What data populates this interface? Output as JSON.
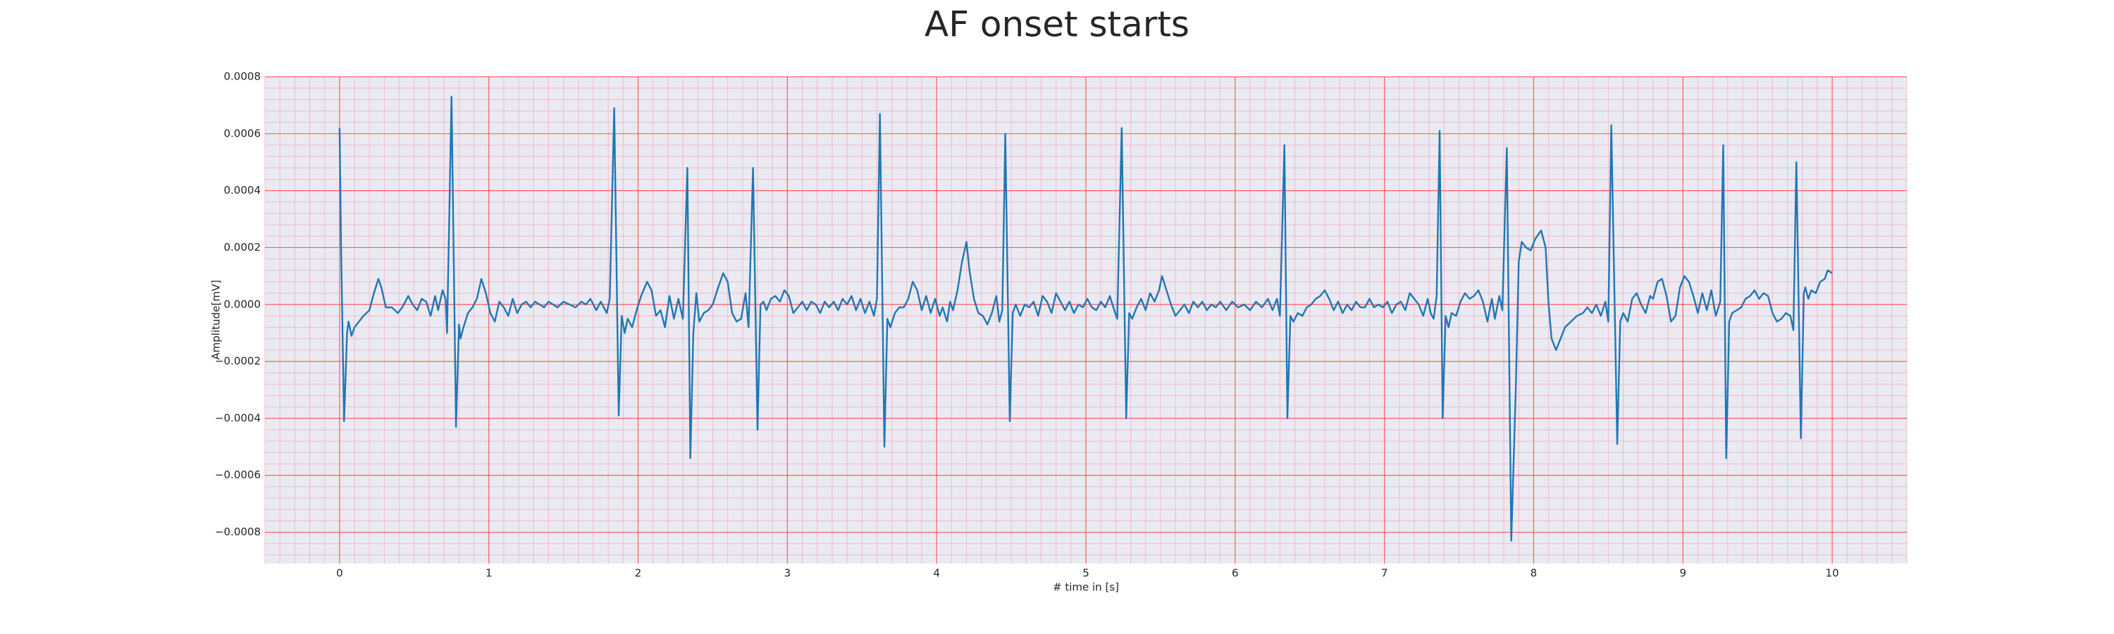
{
  "chart_data": {
    "type": "line",
    "title": "AF onset starts",
    "xlabel": "# time in [s]",
    "ylabel": "Amplitude[mV]",
    "color": "#1f77b4",
    "grid": true,
    "xlim": [
      -0.5,
      10.5
    ],
    "ylim": [
      -0.00091,
      0.0008
    ],
    "xticks": [
      0,
      1,
      2,
      3,
      4,
      5,
      6,
      7,
      8,
      9,
      10
    ],
    "yticks": [
      {
        "value": -0.0008,
        "label": "−0.0008"
      },
      {
        "value": -0.0006,
        "label": "−0.0006"
      },
      {
        "value": -0.0004,
        "label": "−0.0004"
      },
      {
        "value": -0.0002,
        "label": "−0.0002"
      },
      {
        "value": 0,
        "label": "0.0000"
      },
      {
        "value": 0.0002,
        "label": "0.0002"
      },
      {
        "value": 0.0004,
        "label": "0.0004"
      },
      {
        "value": 0.0006,
        "label": "0.0006"
      },
      {
        "value": 0.0008,
        "label": "0.0008"
      }
    ],
    "x": [
      0.0,
      0.01,
      0.03,
      0.05,
      0.06,
      0.08,
      0.1,
      0.13,
      0.16,
      0.2,
      0.23,
      0.26,
      0.28,
      0.31,
      0.35,
      0.39,
      0.42,
      0.46,
      0.49,
      0.52,
      0.55,
      0.58,
      0.61,
      0.64,
      0.66,
      0.69,
      0.71,
      0.72,
      0.75,
      0.78,
      0.8,
      0.81,
      0.83,
      0.86,
      0.89,
      0.92,
      0.95,
      0.98,
      1.01,
      1.04,
      1.07,
      1.1,
      1.13,
      1.16,
      1.19,
      1.22,
      1.25,
      1.28,
      1.31,
      1.34,
      1.37,
      1.4,
      1.43,
      1.46,
      1.5,
      1.54,
      1.58,
      1.62,
      1.65,
      1.68,
      1.72,
      1.75,
      1.79,
      1.81,
      1.84,
      1.87,
      1.89,
      1.91,
      1.93,
      1.96,
      1.99,
      2.02,
      2.06,
      2.09,
      2.12,
      2.15,
      2.18,
      2.21,
      2.24,
      2.27,
      2.3,
      2.33,
      2.35,
      2.37,
      2.39,
      2.41,
      2.44,
      2.47,
      2.5,
      2.53,
      2.57,
      2.6,
      2.63,
      2.66,
      2.69,
      2.72,
      2.74,
      2.77,
      2.8,
      2.82,
      2.84,
      2.86,
      2.89,
      2.92,
      2.95,
      2.98,
      3.01,
      3.04,
      3.07,
      3.1,
      3.13,
      3.16,
      3.19,
      3.22,
      3.25,
      3.28,
      3.31,
      3.34,
      3.37,
      3.4,
      3.43,
      3.46,
      3.49,
      3.52,
      3.55,
      3.58,
      3.6,
      3.62,
      3.65,
      3.67,
      3.69,
      3.72,
      3.75,
      3.78,
      3.81,
      3.84,
      3.87,
      3.9,
      3.93,
      3.96,
      3.99,
      4.02,
      4.04,
      4.07,
      4.09,
      4.11,
      4.14,
      4.17,
      4.2,
      4.22,
      4.25,
      4.28,
      4.31,
      4.34,
      4.37,
      4.4,
      4.42,
      4.44,
      4.46,
      4.49,
      4.51,
      4.53,
      4.56,
      4.59,
      4.62,
      4.65,
      4.68,
      4.71,
      4.74,
      4.77,
      4.8,
      4.83,
      4.86,
      4.89,
      4.92,
      4.95,
      4.98,
      5.01,
      5.04,
      5.07,
      5.1,
      5.13,
      5.16,
      5.19,
      5.21,
      5.24,
      5.27,
      5.29,
      5.31,
      5.34,
      5.37,
      5.4,
      5.43,
      5.46,
      5.49,
      5.51,
      5.54,
      5.57,
      5.6,
      5.63,
      5.66,
      5.69,
      5.72,
      5.75,
      5.78,
      5.81,
      5.84,
      5.87,
      5.9,
      5.94,
      5.98,
      6.02,
      6.06,
      6.1,
      6.14,
      6.18,
      6.22,
      6.25,
      6.28,
      6.3,
      6.33,
      6.35,
      6.37,
      6.39,
      6.42,
      6.45,
      6.48,
      6.51,
      6.54,
      6.57,
      6.6,
      6.63,
      6.66,
      6.69,
      6.72,
      6.75,
      6.78,
      6.81,
      6.84,
      6.87,
      6.9,
      6.93,
      6.96,
      6.99,
      7.02,
      7.05,
      7.08,
      7.11,
      7.14,
      7.17,
      7.2,
      7.23,
      7.26,
      7.29,
      7.31,
      7.33,
      7.35,
      7.37,
      7.39,
      7.41,
      7.43,
      7.45,
      7.48,
      7.51,
      7.54,
      7.57,
      7.6,
      7.63,
      7.66,
      7.69,
      7.72,
      7.74,
      7.77,
      7.79,
      7.82,
      7.85,
      7.88,
      7.9,
      7.92,
      7.95,
      7.98,
      8.01,
      8.05,
      8.08,
      8.1,
      8.12,
      8.15,
      8.18,
      8.21,
      8.25,
      8.29,
      8.33,
      8.36,
      8.39,
      8.42,
      8.45,
      8.48,
      8.5,
      8.52,
      8.56,
      8.58,
      8.6,
      8.63,
      8.66,
      8.69,
      8.72,
      8.75,
      8.78,
      8.8,
      8.83,
      8.86,
      8.89,
      8.92,
      8.95,
      8.98,
      9.01,
      9.04,
      9.07,
      9.1,
      9.13,
      9.16,
      9.19,
      9.22,
      9.25,
      9.27,
      9.29,
      9.31,
      9.33,
      9.36,
      9.39,
      9.42,
      9.45,
      9.48,
      9.51,
      9.54,
      9.57,
      9.6,
      9.63,
      9.66,
      9.69,
      9.72,
      9.74,
      9.76,
      9.79,
      9.81,
      9.82,
      9.84,
      9.86,
      9.89,
      9.92,
      9.95,
      9.97,
      10.0
    ],
    "values": [
      0.00062,
      0.0002,
      -0.00041,
      -0.0001,
      -6e-05,
      -0.00011,
      -8e-05,
      -6e-05,
      -4e-05,
      -2e-05,
      4e-05,
      9e-05,
      6e-05,
      -1e-05,
      -1e-05,
      -3e-05,
      -1e-05,
      3e-05,
      0,
      -2e-05,
      2e-05,
      1e-05,
      -4e-05,
      3e-05,
      -2e-05,
      5e-05,
      2e-05,
      -0.0001,
      0.00073,
      -0.00043,
      -7e-05,
      -0.00012,
      -8e-05,
      -3e-05,
      -1e-05,
      2e-05,
      9e-05,
      4e-05,
      -3e-05,
      -6e-05,
      1e-05,
      -1e-05,
      -4e-05,
      2e-05,
      -3e-05,
      0,
      1e-05,
      -1e-05,
      1e-05,
      0,
      -1e-05,
      1e-05,
      0,
      -1e-05,
      1e-05,
      0,
      -1e-05,
      1e-05,
      0,
      2e-05,
      -2e-05,
      1e-05,
      -3e-05,
      2e-05,
      0.00069,
      -0.00039,
      -4e-05,
      -0.0001,
      -5e-05,
      -8e-05,
      -2e-05,
      3e-05,
      8e-05,
      5e-05,
      -4e-05,
      -2e-05,
      -8e-05,
      3e-05,
      -5e-05,
      2e-05,
      -5e-05,
      0.00048,
      -0.00054,
      -0.0001,
      4e-05,
      -6e-05,
      -3e-05,
      -2e-05,
      0,
      5e-05,
      0.00011,
      8e-05,
      -3e-05,
      -6e-05,
      -5e-05,
      4e-05,
      -8e-05,
      0.00048,
      -0.00044,
      0,
      1e-05,
      -2e-05,
      2e-05,
      3e-05,
      1e-05,
      5e-05,
      3e-05,
      -3e-05,
      -1e-05,
      1e-05,
      -2e-05,
      1e-05,
      0,
      -3e-05,
      1e-05,
      -1e-05,
      1e-05,
      -2e-05,
      2e-05,
      0,
      3e-05,
      -2e-05,
      2e-05,
      -3e-05,
      1e-05,
      -4e-05,
      2e-05,
      0.00067,
      -0.0005,
      -5e-05,
      -8e-05,
      -3e-05,
      -1e-05,
      -1e-05,
      2e-05,
      8e-05,
      5e-05,
      -2e-05,
      3e-05,
      -3e-05,
      2e-05,
      -4e-05,
      -1e-05,
      -6e-05,
      1e-05,
      -2e-05,
      5e-05,
      0.00015,
      0.00022,
      0.00012,
      2e-05,
      -3e-05,
      -4e-05,
      -7e-05,
      -3e-05,
      3e-05,
      -6e-05,
      -2e-05,
      0.0006,
      -0.00041,
      -3e-05,
      0,
      -4e-05,
      0,
      -1e-05,
      1e-05,
      -4e-05,
      3e-05,
      1e-05,
      -3e-05,
      4e-05,
      1e-05,
      -2e-05,
      1e-05,
      -3e-05,
      0,
      -1e-05,
      2e-05,
      -1e-05,
      -2e-05,
      1e-05,
      -1e-05,
      3e-05,
      -2e-05,
      -5e-05,
      0.00062,
      -0.0004,
      -3e-05,
      -5e-05,
      -1e-05,
      2e-05,
      -2e-05,
      4e-05,
      1e-05,
      5e-05,
      0.0001,
      5e-05,
      0,
      -4e-05,
      -2e-05,
      0,
      -3e-05,
      1e-05,
      -1e-05,
      1e-05,
      -2e-05,
      0,
      -1e-05,
      1e-05,
      -2e-05,
      1e-05,
      -1e-05,
      0,
      -2e-05,
      1e-05,
      -1e-05,
      2e-05,
      -2e-05,
      2e-05,
      -4e-05,
      0.00056,
      -0.0004,
      -4e-05,
      -6e-05,
      -3e-05,
      -4e-05,
      -1e-05,
      0,
      2e-05,
      3e-05,
      5e-05,
      2e-05,
      -2e-05,
      1e-05,
      -3e-05,
      0,
      -2e-05,
      1e-05,
      -1e-05,
      -1e-05,
      2e-05,
      -1e-05,
      0,
      -1e-05,
      1e-05,
      -3e-05,
      0,
      1e-05,
      -2e-05,
      4e-05,
      2e-05,
      0,
      -4e-05,
      2e-05,
      -3e-05,
      -5e-05,
      3e-05,
      0.00061,
      -0.0004,
      -4e-05,
      -8e-05,
      -3e-05,
      -4e-05,
      1e-05,
      4e-05,
      2e-05,
      3e-05,
      5e-05,
      1e-05,
      -6e-05,
      2e-05,
      -5e-05,
      3e-05,
      -2e-05,
      0.00055,
      -0.00083,
      -0.0003,
      0.00015,
      0.00022,
      0.0002,
      0.00019,
      0.00023,
      0.00026,
      0.0002,
      0,
      -0.00012,
      -0.00016,
      -0.00012,
      -8e-05,
      -6e-05,
      -4e-05,
      -3e-05,
      -1e-05,
      -3e-05,
      0,
      -4e-05,
      1e-05,
      -6e-05,
      0.00063,
      -0.00049,
      -6e-05,
      -3e-05,
      -6e-05,
      2e-05,
      4e-05,
      0,
      -3e-05,
      3e-05,
      2e-05,
      8e-05,
      9e-05,
      3e-05,
      -6e-05,
      -4e-05,
      6e-05,
      0.0001,
      8e-05,
      3e-05,
      -3e-05,
      4e-05,
      -2e-05,
      5e-05,
      -4e-05,
      1e-05,
      0.00056,
      -0.00054,
      -6e-05,
      -3e-05,
      -2e-05,
      -1e-05,
      2e-05,
      3e-05,
      5e-05,
      2e-05,
      4e-05,
      3e-05,
      -3e-05,
      -6e-05,
      -5e-05,
      -3e-05,
      -4e-05,
      -9e-05,
      0.0005,
      -0.00047,
      4e-05,
      6e-05,
      2e-05,
      5e-05,
      4e-05,
      8e-05,
      9e-05,
      0.00012,
      0.00011
    ]
  }
}
